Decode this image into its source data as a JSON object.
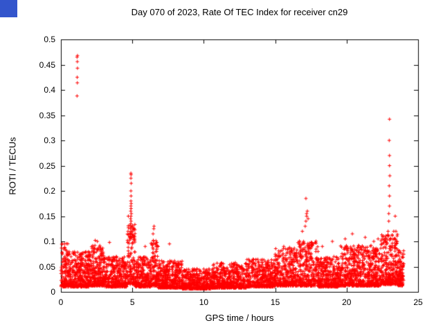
{
  "decorations": {
    "corner_square_color": "#3355cc"
  },
  "chart_data": {
    "type": "scatter",
    "title": "Day 070 of 2023, Rate Of TEC Index for receiver cn29",
    "xlabel": "GPS time / hours",
    "ylabel": "ROTI / TECUs",
    "xlim": [
      0,
      25
    ],
    "ylim": [
      0,
      0.5
    ],
    "grid": false,
    "legend": "none",
    "x_ticks": [
      0,
      5,
      10,
      15,
      20,
      25
    ],
    "x_tick_labels": [
      "0",
      "5",
      "10",
      "15",
      "20",
      "25"
    ],
    "y_ticks": [
      0,
      0.05,
      0.1,
      0.15,
      0.2,
      0.25,
      0.3,
      0.35,
      0.4,
      0.45,
      0.5
    ],
    "y_tick_labels": [
      "0",
      "0.05",
      "0.1",
      "0.15",
      "0.2",
      "0.25",
      "0.3",
      "0.35",
      "0.4",
      "0.45",
      "0.5"
    ],
    "marker": {
      "shape": "plus",
      "color": "#ff0000",
      "size": 5
    },
    "frame_color": "#000000",
    "spike_points": [
      [
        1.13,
        0.388
      ],
      [
        1.15,
        0.414
      ],
      [
        1.14,
        0.425
      ],
      [
        1.16,
        0.443
      ],
      [
        1.15,
        0.456
      ],
      [
        1.13,
        0.465
      ],
      [
        1.16,
        0.468
      ],
      [
        4.7,
        0.12
      ],
      [
        4.72,
        0.15
      ],
      [
        4.85,
        0.105
      ],
      [
        4.87,
        0.11
      ],
      [
        4.88,
        0.115
      ],
      [
        4.9,
        0.12
      ],
      [
        4.86,
        0.125
      ],
      [
        4.92,
        0.13
      ],
      [
        4.89,
        0.135
      ],
      [
        4.91,
        0.14
      ],
      [
        4.88,
        0.145
      ],
      [
        4.9,
        0.15
      ],
      [
        4.93,
        0.155
      ],
      [
        4.89,
        0.16
      ],
      [
        4.91,
        0.165
      ],
      [
        4.9,
        0.17
      ],
      [
        4.92,
        0.175
      ],
      [
        4.9,
        0.18
      ],
      [
        4.91,
        0.19
      ],
      [
        4.9,
        0.2
      ],
      [
        4.92,
        0.215
      ],
      [
        4.9,
        0.225
      ],
      [
        4.91,
        0.232
      ],
      [
        4.9,
        0.235
      ],
      [
        6.45,
        0.115
      ],
      [
        6.5,
        0.125
      ],
      [
        6.52,
        0.13
      ],
      [
        0.1,
        0.095
      ],
      [
        2.4,
        0.102
      ],
      [
        2.55,
        0.1
      ],
      [
        3.4,
        0.098
      ],
      [
        5.9,
        0.09
      ],
      [
        7.6,
        0.095
      ],
      [
        15.6,
        0.09
      ],
      [
        16.0,
        0.088
      ],
      [
        16.9,
        0.12
      ],
      [
        18.3,
        0.09
      ],
      [
        19.0,
        0.1
      ],
      [
        19.9,
        0.105
      ],
      [
        20.4,
        0.115
      ],
      [
        21.3,
        0.108
      ],
      [
        21.9,
        0.1
      ],
      [
        22.2,
        0.105
      ],
      [
        17.1,
        0.13
      ],
      [
        17.15,
        0.14
      ],
      [
        17.2,
        0.15
      ],
      [
        17.2,
        0.155
      ],
      [
        17.25,
        0.16
      ],
      [
        17.3,
        0.145
      ],
      [
        17.15,
        0.185
      ],
      [
        22.6,
        0.11
      ],
      [
        22.9,
        0.12
      ],
      [
        22.95,
        0.14
      ],
      [
        22.95,
        0.155
      ],
      [
        23.0,
        0.17
      ],
      [
        23.0,
        0.19
      ],
      [
        22.98,
        0.21
      ],
      [
        23.02,
        0.23
      ],
      [
        23.0,
        0.25
      ],
      [
        23.0,
        0.27
      ],
      [
        22.98,
        0.3
      ],
      [
        23.0,
        0.342
      ],
      [
        23.3,
        0.12
      ],
      [
        23.4,
        0.15
      ],
      [
        23.45,
        0.12
      ]
    ],
    "noise_band": {
      "seed": 1070,
      "distribution_power": 2.0,
      "segments": [
        {
          "x0": 0.0,
          "x1": 0.5,
          "n": 120,
          "base": 0.01,
          "amp": 0.09
        },
        {
          "x0": 0.5,
          "x1": 2.0,
          "n": 350,
          "base": 0.01,
          "amp": 0.07
        },
        {
          "x0": 2.0,
          "x1": 3.0,
          "n": 250,
          "base": 0.012,
          "amp": 0.08
        },
        {
          "x0": 3.0,
          "x1": 4.6,
          "n": 350,
          "base": 0.01,
          "amp": 0.06
        },
        {
          "x0": 4.6,
          "x1": 5.2,
          "n": 150,
          "base": 0.015,
          "amp": 0.12
        },
        {
          "x0": 5.2,
          "x1": 6.3,
          "n": 250,
          "base": 0.01,
          "amp": 0.06
        },
        {
          "x0": 6.3,
          "x1": 6.8,
          "n": 120,
          "base": 0.012,
          "amp": 0.09
        },
        {
          "x0": 6.8,
          "x1": 8.5,
          "n": 380,
          "base": 0.008,
          "amp": 0.055
        },
        {
          "x0": 8.5,
          "x1": 10.5,
          "n": 420,
          "base": 0.006,
          "amp": 0.04
        },
        {
          "x0": 10.5,
          "x1": 13.0,
          "n": 520,
          "base": 0.008,
          "amp": 0.05
        },
        {
          "x0": 13.0,
          "x1": 15.0,
          "n": 420,
          "base": 0.01,
          "amp": 0.055
        },
        {
          "x0": 15.0,
          "x1": 16.5,
          "n": 320,
          "base": 0.012,
          "amp": 0.075
        },
        {
          "x0": 16.5,
          "x1": 18.0,
          "n": 320,
          "base": 0.012,
          "amp": 0.09
        },
        {
          "x0": 18.0,
          "x1": 19.5,
          "n": 320,
          "base": 0.01,
          "amp": 0.06
        },
        {
          "x0": 19.5,
          "x1": 21.0,
          "n": 340,
          "base": 0.012,
          "amp": 0.08
        },
        {
          "x0": 21.0,
          "x1": 22.4,
          "n": 320,
          "base": 0.012,
          "amp": 0.08
        },
        {
          "x0": 22.4,
          "x1": 23.6,
          "n": 300,
          "base": 0.015,
          "amp": 0.1
        },
        {
          "x0": 23.6,
          "x1": 24.0,
          "n": 120,
          "base": 0.012,
          "amp": 0.07
        }
      ]
    }
  }
}
